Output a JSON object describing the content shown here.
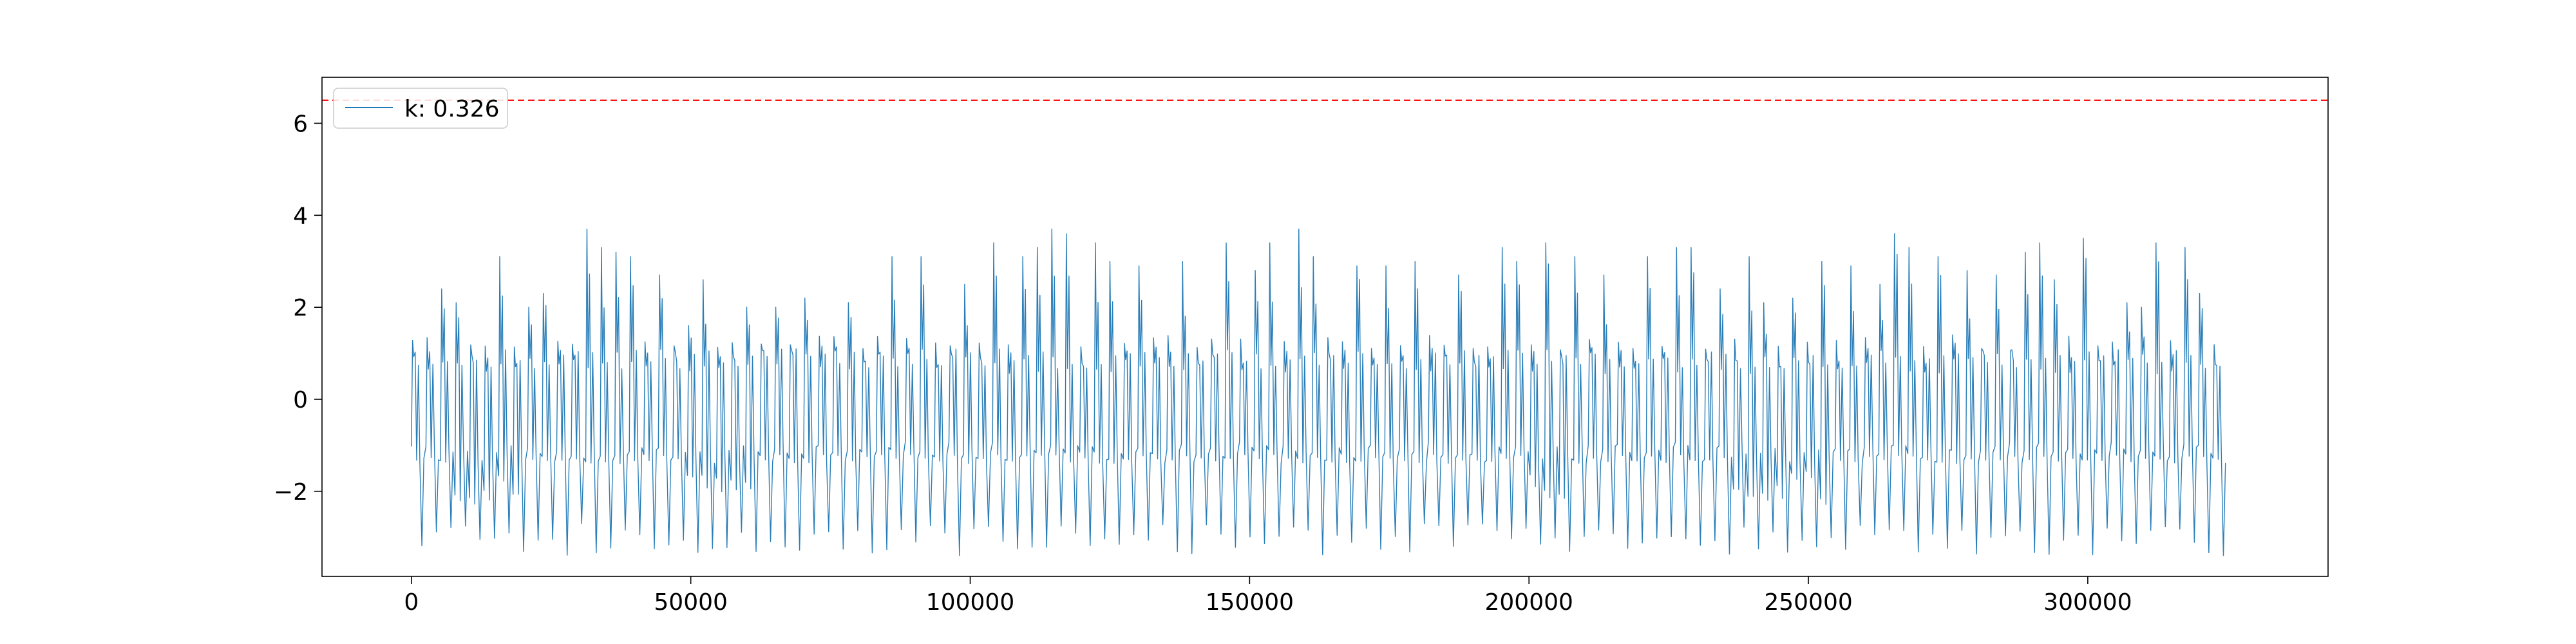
{
  "chart_data": {
    "type": "line",
    "title": "",
    "xlabel": "",
    "ylabel": "",
    "xlim": [
      -16000,
      343000
    ],
    "ylim": [
      -3.85,
      7.0
    ],
    "xticks": [
      0,
      50000,
      100000,
      150000,
      200000,
      250000,
      300000
    ],
    "xtick_labels": [
      "0",
      "50000",
      "100000",
      "150000",
      "200000",
      "250000",
      "300000"
    ],
    "yticks": [
      -2,
      0,
      2,
      4,
      6
    ],
    "ytick_labels": [
      "−2",
      "0",
      "2",
      "4",
      "6"
    ],
    "legend": {
      "placement": "top-left",
      "entries": [
        {
          "label": "k: 0.326",
          "color": "#1f77b4"
        }
      ]
    },
    "threshold": {
      "value": 6.5,
      "color": "#ff0000",
      "style": "dashed"
    },
    "series": [
      {
        "name": "k: 0.326",
        "color": "#1f77b4",
        "x_range": [
          0,
          327000
        ],
        "cycle_length": 2600,
        "baseline_band": [
          -1.2,
          1.1
        ],
        "typical_peak": 1.2,
        "max_peak": 3.7,
        "min_trough": -3.4,
        "peaks": [
          [
            6000,
            2.4
          ],
          [
            8500,
            2.1
          ],
          [
            16800,
            3.1
          ],
          [
            21000,
            2.0
          ],
          [
            22600,
            2.3
          ],
          [
            27800,
            1.2
          ],
          [
            30000,
            3.7
          ],
          [
            34800,
            3.3
          ],
          [
            36000,
            3.2
          ],
          [
            40000,
            3.1
          ],
          [
            44000,
            2.7
          ],
          [
            50000,
            1.6
          ],
          [
            53000,
            2.6
          ],
          [
            60000,
            2.0
          ],
          [
            64000,
            2.0
          ],
          [
            70000,
            2.2
          ],
          [
            78000,
            2.1
          ],
          [
            85000,
            2.2
          ],
          [
            87000,
            3.1
          ],
          [
            92000,
            3.1
          ],
          [
            98000,
            3.4
          ],
          [
            100000,
            2.5
          ],
          [
            105000,
            3.4
          ],
          [
            108000,
            2.8
          ],
          [
            110000,
            3.1
          ],
          [
            112000,
            3.3
          ],
          [
            114000,
            3.7
          ],
          [
            116500,
            3.6
          ],
          [
            122000,
            3.4
          ],
          [
            124000,
            3.0
          ],
          [
            130000,
            2.9
          ],
          [
            138000,
            3.0
          ],
          [
            145000,
            3.4
          ],
          [
            150000,
            2.8
          ],
          [
            153000,
            3.4
          ],
          [
            158000,
            3.7
          ],
          [
            160000,
            3.0
          ],
          [
            162000,
            3.1
          ],
          [
            168000,
            2.9
          ],
          [
            175000,
            2.9
          ],
          [
            180000,
            3.0
          ],
          [
            188000,
            2.7
          ],
          [
            196000,
            3.3
          ],
          [
            198000,
            3.0
          ],
          [
            203000,
            3.4
          ],
          [
            208000,
            3.1
          ],
          [
            214000,
            2.7
          ],
          [
            220000,
            3.1
          ],
          [
            226000,
            3.3
          ],
          [
            229000,
            3.3
          ],
          [
            235000,
            2.4
          ],
          [
            238000,
            3.1
          ],
          [
            241000,
            2.1
          ],
          [
            246000,
            2.2
          ],
          [
            253000,
            3.0
          ],
          [
            258000,
            2.9
          ],
          [
            262000,
            2.5
          ],
          [
            264000,
            3.6
          ],
          [
            268000,
            3.3
          ],
          [
            272000,
            3.1
          ],
          [
            278000,
            2.8
          ],
          [
            284000,
            2.7
          ],
          [
            288000,
            3.2
          ],
          [
            290000,
            3.4
          ],
          [
            294000,
            2.6
          ],
          [
            300000,
            3.5
          ],
          [
            307000,
            2.1
          ],
          [
            309000,
            2.0
          ],
          [
            313000,
            3.4
          ],
          [
            316000,
            3.3
          ],
          [
            320000,
            2.3
          ],
          [
            325000,
            2.1
          ]
        ],
        "dense_lower_regions": [
          [
            7000,
            20000
          ],
          [
            48000,
            60000
          ],
          [
            198000,
            206000
          ],
          [
            236000,
            254000
          ]
        ]
      }
    ]
  }
}
